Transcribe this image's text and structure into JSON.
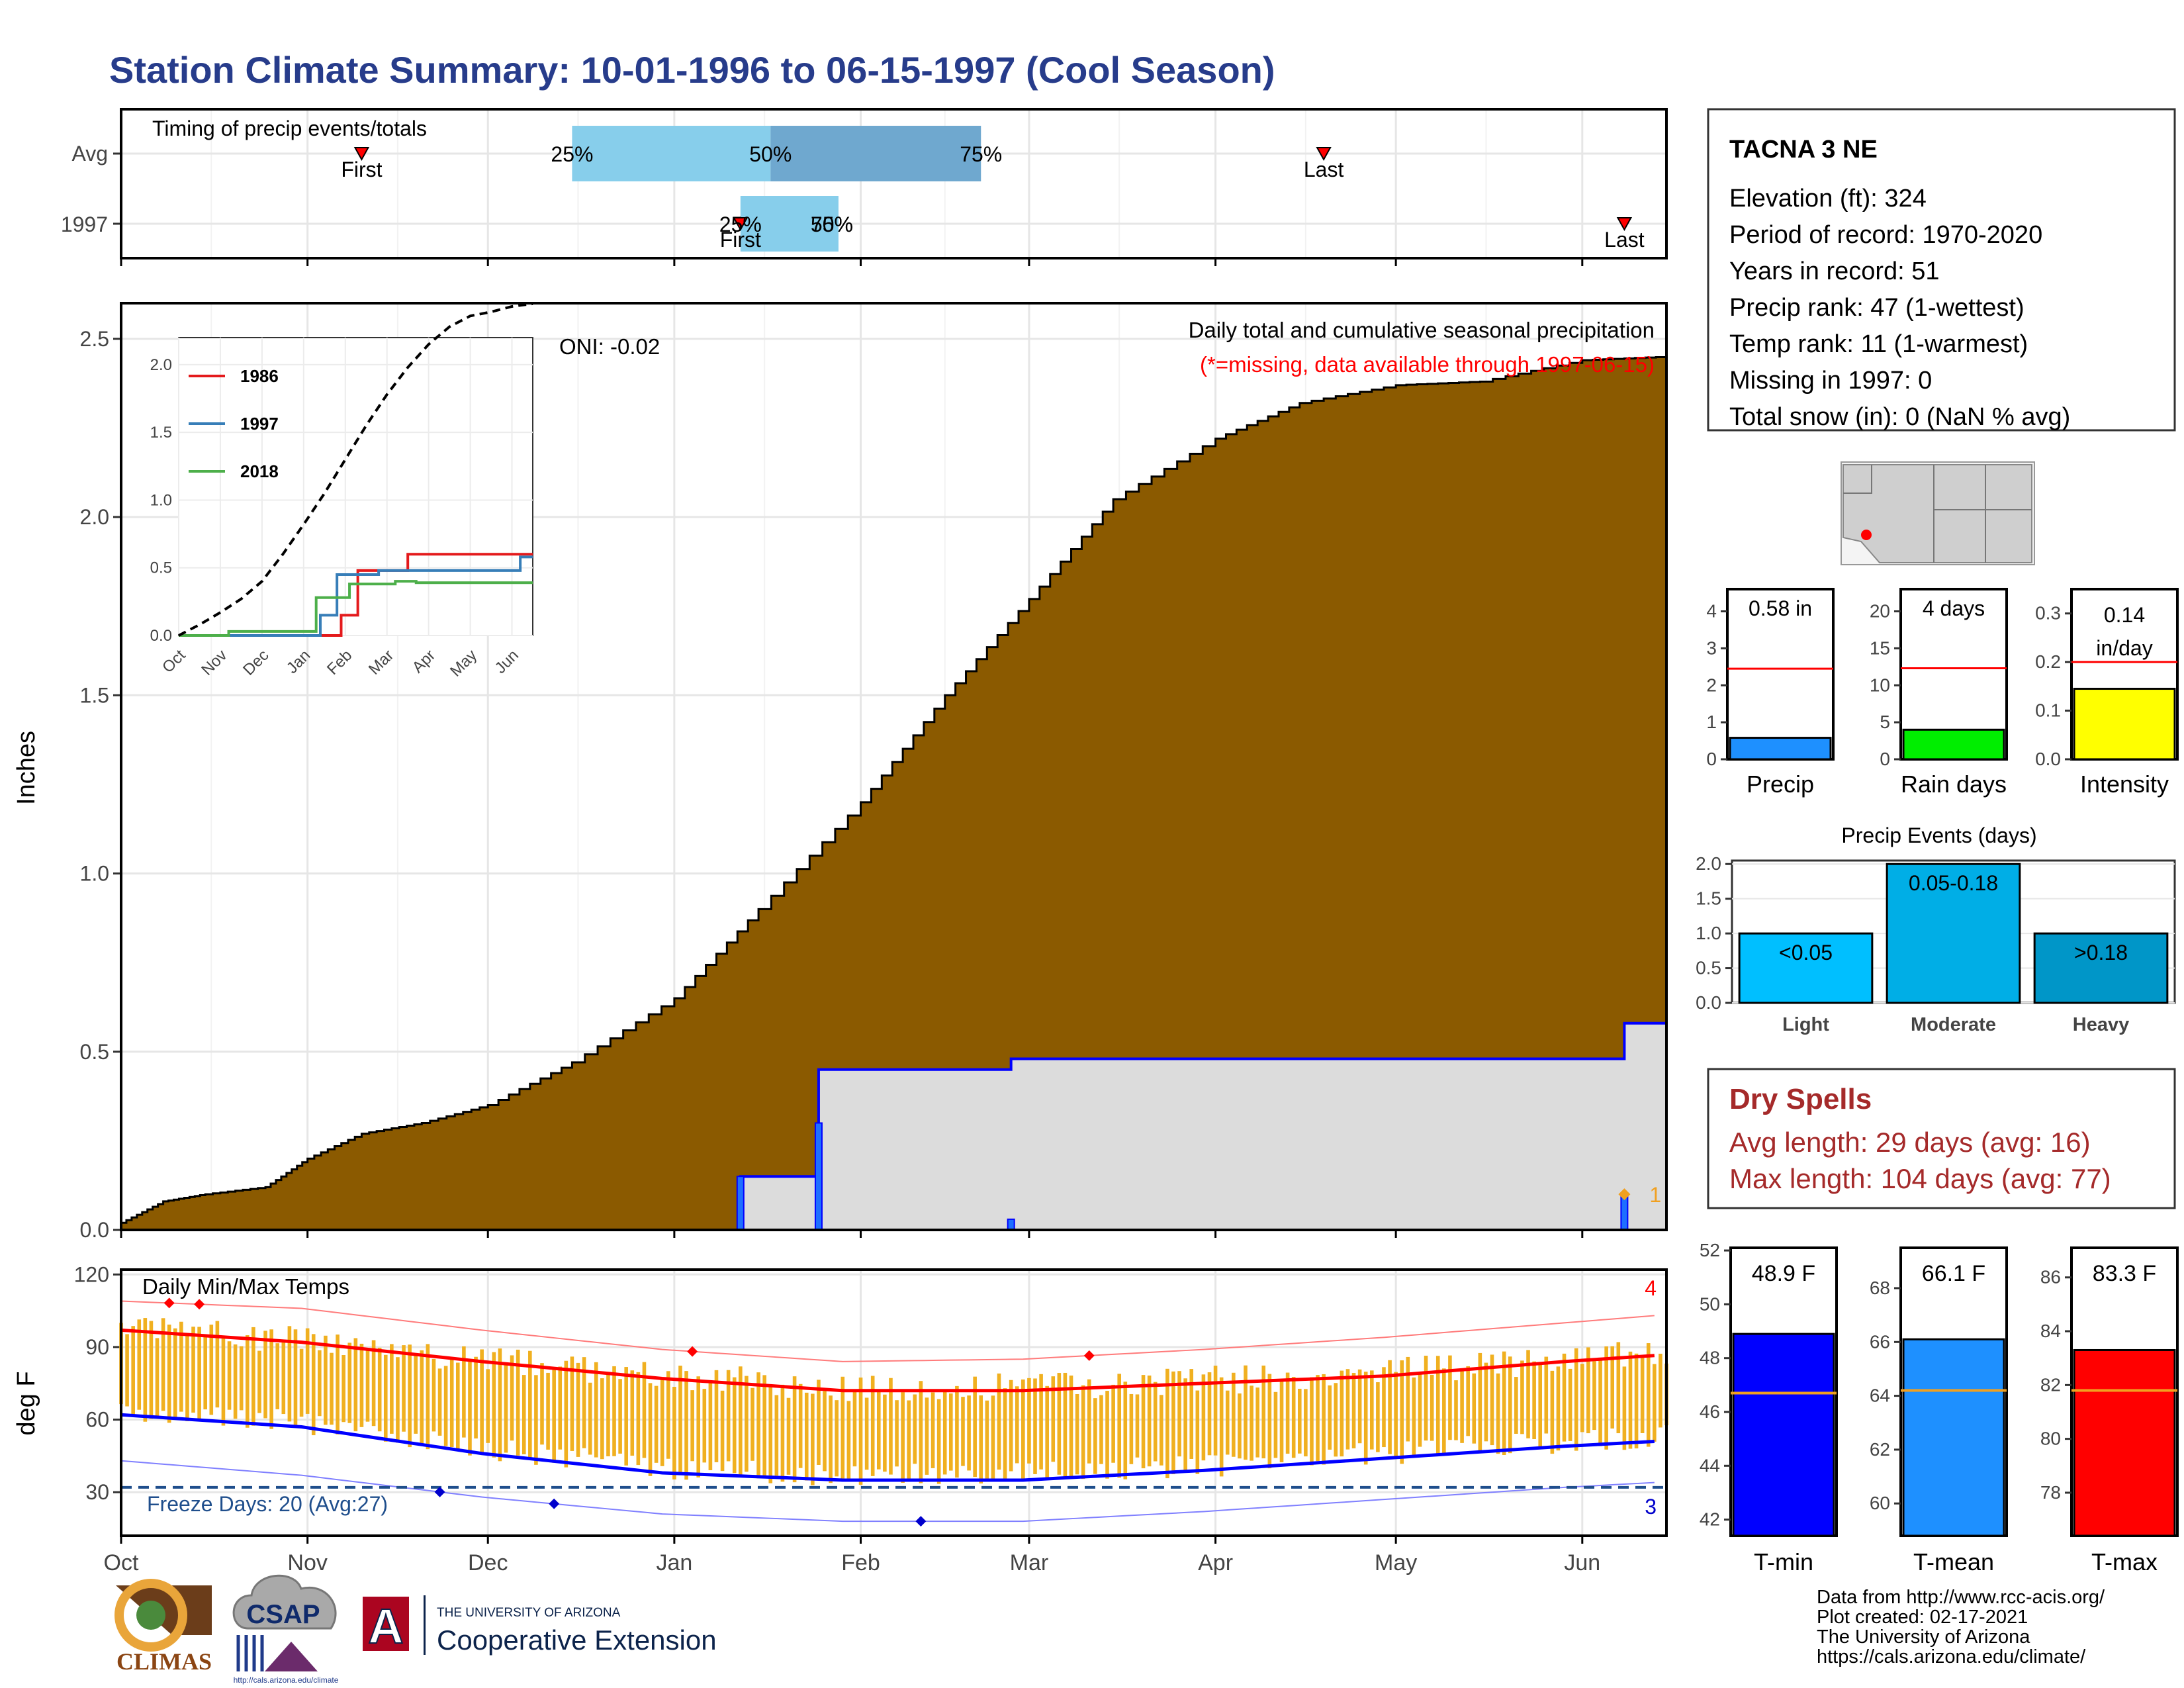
{
  "title": "Station Climate Summary: 10-01-1996 to 06-15-1997 (Cool Season)",
  "chart_data": [
    {
      "id": "timing",
      "type": "bar",
      "title": "Timing of precip events/totals",
      "rows": [
        {
          "label": "Avg",
          "first": "1996-11-10",
          "last": "1997-04-19",
          "q25": "1996-12-15",
          "q50": "1997-01-17",
          "q75": "1997-02-21"
        },
        {
          "label": "1997",
          "first": "1997-01-12",
          "last": "1997-06-08",
          "q25": "1997-01-12",
          "q50": "1997-01-25",
          "q75": "1997-01-25"
        }
      ],
      "labels": {
        "first": "First",
        "last": "Last",
        "p25": "25%",
        "p50": "50%",
        "p75": "75%"
      }
    },
    {
      "id": "precip",
      "type": "area",
      "title": "Daily total and cumulative seasonal precipitation",
      "subtitle": "(*=missing, data available through 1997-06-15)",
      "ylabel": "Inches",
      "oni": "ONI: -0.02",
      "ylim": [
        0,
        2.6
      ],
      "yticks": [
        "0.0",
        "0.5",
        "1.0",
        "1.5",
        "2.0",
        "2.5"
      ],
      "avg_cumulative": [
        {
          "x": "1996-10-01",
          "y": 0.02
        },
        {
          "x": "1996-10-08",
          "y": 0.08
        },
        {
          "x": "1996-10-15",
          "y": 0.1
        },
        {
          "x": "1996-10-25",
          "y": 0.12
        },
        {
          "x": "1996-11-01",
          "y": 0.2
        },
        {
          "x": "1996-11-10",
          "y": 0.27
        },
        {
          "x": "1996-11-20",
          "y": 0.3
        },
        {
          "x": "1996-12-01",
          "y": 0.35
        },
        {
          "x": "1996-12-15",
          "y": 0.47
        },
        {
          "x": "1997-01-01",
          "y": 0.65
        },
        {
          "x": "1997-01-15",
          "y": 0.9
        },
        {
          "x": "1997-02-01",
          "y": 1.2
        },
        {
          "x": "1997-02-15",
          "y": 1.5
        },
        {
          "x": "1997-03-01",
          "y": 1.77
        },
        {
          "x": "1997-03-15",
          "y": 2.05
        },
        {
          "x": "1997-04-01",
          "y": 2.22
        },
        {
          "x": "1997-04-15",
          "y": 2.32
        },
        {
          "x": "1997-05-01",
          "y": 2.37
        },
        {
          "x": "1997-05-15",
          "y": 2.38
        },
        {
          "x": "1997-06-01",
          "y": 2.44
        },
        {
          "x": "1997-06-15",
          "y": 2.45
        }
      ],
      "cumulative_1997": [
        {
          "x": "1996-10-01",
          "y": 0.0
        },
        {
          "x": "1997-01-12",
          "y": 0.15
        },
        {
          "x": "1997-01-25",
          "y": 0.45
        },
        {
          "x": "1997-02-26",
          "y": 0.48
        },
        {
          "x": "1997-06-08",
          "y": 0.58
        }
      ],
      "daily_1997": [
        {
          "x": "1997-01-12",
          "y": 0.15
        },
        {
          "x": "1997-01-25",
          "y": 0.3
        },
        {
          "x": "1997-02-26",
          "y": 0.03
        },
        {
          "x": "1997-06-08",
          "y": 0.1
        }
      ],
      "marker_label": "1",
      "inset": {
        "type": "line",
        "x": [
          "Oct",
          "Nov",
          "Dec",
          "Jan",
          "Feb",
          "Mar",
          "Apr",
          "May",
          "Jun"
        ],
        "yticks": [
          "0.0",
          "0.5",
          "1.0",
          "1.5",
          "2.0"
        ],
        "ylim": [
          0,
          2.2
        ],
        "series": [
          {
            "name": "1986",
            "color": "#e41a1c",
            "points": [
              [
                0,
                0
              ],
              [
                3.9,
                0
              ],
              [
                3.9,
                0.15
              ],
              [
                4.3,
                0.15
              ],
              [
                4.3,
                0.48
              ],
              [
                5.5,
                0.48
              ],
              [
                5.5,
                0.6
              ],
              [
                8.5,
                0.6
              ]
            ]
          },
          {
            "name": "1997",
            "color": "#377eb8",
            "points": [
              [
                0,
                0
              ],
              [
                3.4,
                0
              ],
              [
                3.4,
                0.15
              ],
              [
                3.8,
                0.15
              ],
              [
                3.8,
                0.45
              ],
              [
                4.8,
                0.45
              ],
              [
                4.8,
                0.48
              ],
              [
                8.2,
                0.48
              ],
              [
                8.2,
                0.58
              ],
              [
                8.5,
                0.58
              ]
            ]
          },
          {
            "name": "2018",
            "color": "#4daf4a",
            "points": [
              [
                0,
                0
              ],
              [
                1.2,
                0
              ],
              [
                1.2,
                0.03
              ],
              [
                3.3,
                0.03
              ],
              [
                3.3,
                0.28
              ],
              [
                4.1,
                0.28
              ],
              [
                4.1,
                0.38
              ],
              [
                5.2,
                0.38
              ],
              [
                5.2,
                0.4
              ],
              [
                5.7,
                0.4
              ],
              [
                5.7,
                0.39
              ],
              [
                8.5,
                0.39
              ]
            ]
          },
          {
            "name": "avg",
            "color": "#000000",
            "dash": true,
            "points": [
              [
                0,
                0
              ],
              [
                0.5,
                0.08
              ],
              [
                1,
                0.17
              ],
              [
                1.5,
                0.27
              ],
              [
                2,
                0.4
              ],
              [
                2.5,
                0.6
              ],
              [
                3,
                0.82
              ],
              [
                3.5,
                1.05
              ],
              [
                4,
                1.3
              ],
              [
                4.5,
                1.55
              ],
              [
                5,
                1.78
              ],
              [
                5.5,
                1.98
              ],
              [
                6,
                2.15
              ],
              [
                6.5,
                2.28
              ],
              [
                7,
                2.36
              ],
              [
                7.5,
                2.39
              ],
              [
                8,
                2.43
              ],
              [
                8.5,
                2.45
              ]
            ]
          }
        ]
      }
    },
    {
      "id": "temps",
      "type": "line",
      "title": "Daily Min/Max Temps",
      "ylabel": "deg F",
      "ylim": [
        12,
        122
      ],
      "yticks": [
        "30",
        "60",
        "90",
        "120"
      ],
      "freeze_line": 32,
      "freeze_text": "Freeze Days: 20 (Avg:27)",
      "record_high_count": "4",
      "record_low_count": "3",
      "avg_max": [
        [
          0,
          97
        ],
        [
          30,
          92
        ],
        [
          60,
          84
        ],
        [
          90,
          77
        ],
        [
          120,
          72
        ],
        [
          150,
          72
        ],
        [
          180,
          75
        ],
        [
          210,
          78
        ],
        [
          240,
          84
        ],
        [
          270,
          89
        ],
        [
          300,
          96
        ],
        [
          330,
          100
        ],
        [
          350,
          103
        ]
      ],
      "avg_min": [
        [
          0,
          62
        ],
        [
          30,
          57
        ],
        [
          60,
          46
        ],
        [
          90,
          38
        ],
        [
          120,
          35
        ],
        [
          150,
          35
        ],
        [
          180,
          39
        ],
        [
          210,
          44
        ],
        [
          240,
          49
        ],
        [
          270,
          53
        ],
        [
          300,
          58
        ],
        [
          330,
          62
        ],
        [
          350,
          65
        ]
      ],
      "rec_max": [
        [
          0,
          109
        ],
        [
          30,
          106
        ],
        [
          60,
          97
        ],
        [
          90,
          89
        ],
        [
          120,
          84
        ],
        [
          150,
          85
        ],
        [
          180,
          89
        ],
        [
          210,
          94
        ],
        [
          240,
          100
        ],
        [
          270,
          106
        ],
        [
          300,
          112
        ],
        [
          330,
          117
        ],
        [
          350,
          120
        ]
      ],
      "rec_min": [
        [
          0,
          43
        ],
        [
          30,
          37
        ],
        [
          60,
          28
        ],
        [
          90,
          21
        ],
        [
          120,
          18
        ],
        [
          150,
          18
        ],
        [
          180,
          22
        ],
        [
          210,
          27
        ],
        [
          240,
          32
        ],
        [
          270,
          36
        ],
        [
          300,
          42
        ],
        [
          330,
          48
        ],
        [
          350,
          53
        ]
      ],
      "record_high_days": [
        8,
        13,
        95,
        161
      ],
      "record_low_days": [
        53,
        72,
        133
      ],
      "xticks": [
        "Oct",
        "Nov",
        "Dec",
        "Jan",
        "Feb",
        "Mar",
        "Apr",
        "May",
        "Jun"
      ]
    },
    {
      "id": "season_stats",
      "type": "bar",
      "panels": [
        {
          "label": "Precip",
          "value_text": "0.58 in",
          "value": 0.58,
          "avg": 2.45,
          "ymax": 4.6,
          "yticks": [
            "0",
            "1",
            "2",
            "3",
            "4"
          ],
          "color": "#1e90ff"
        },
        {
          "label": "Rain days",
          "value_text": "4 days",
          "value": 4,
          "avg": 12.3,
          "ymax": 23,
          "yticks": [
            "0",
            "5",
            "10",
            "15",
            "20"
          ],
          "color": "#00ee00"
        },
        {
          "label": "Intensity",
          "value_text": "0.14 in/day",
          "value": 0.145,
          "avg": 0.2,
          "ymax": 0.35,
          "yticks": [
            "0.0",
            "0.1",
            "0.2",
            "0.3"
          ],
          "color": "#ffff00"
        }
      ]
    },
    {
      "id": "events",
      "type": "bar",
      "title": "Precip Events (days)",
      "categories": [
        "Light",
        "Moderate",
        "Heavy"
      ],
      "values": [
        1,
        2,
        1
      ],
      "bar_labels": [
        "<0.05",
        "0.05-0.18",
        ">0.18"
      ],
      "colors": [
        "#00bfff",
        "#00aee6",
        "#0096c8"
      ],
      "ylim": [
        0,
        2.05
      ],
      "yticks": [
        "0.0",
        "0.5",
        "1.0",
        "1.5",
        "2.0"
      ]
    },
    {
      "id": "temp_stats",
      "type": "bar",
      "panels": [
        {
          "label": "T-min",
          "value_text": "48.9 F",
          "value": 48.9,
          "avg": 46.7,
          "ymin": 41.4,
          "ymax": 52.1,
          "yticks": [
            "42",
            "44",
            "46",
            "48",
            "50",
            "52"
          ],
          "color": "#0000ff"
        },
        {
          "label": "T-mean",
          "value_text": "66.1 F",
          "value": 66.1,
          "avg": 64.2,
          "ymin": 58.8,
          "ymax": 69.5,
          "yticks": [
            "60",
            "62",
            "64",
            "66",
            "68"
          ],
          "color": "#1e90ff"
        },
        {
          "label": "T-max",
          "value_text": "83.3 F",
          "value": 83.3,
          "avg": 81.8,
          "ymin": 76.4,
          "ymax": 87.1,
          "yticks": [
            "78",
            "80",
            "82",
            "84",
            "86"
          ],
          "color": "#ff0000"
        }
      ]
    }
  ],
  "station": {
    "name": "TACNA 3 NE",
    "lines": [
      "Elevation (ft): 324",
      "Period of record: 1970-2020",
      "Years in record: 51",
      "Precip rank: 47 (1-wettest)",
      "Temp rank: 11 (1-warmest)",
      "Missing in 1997: 0",
      "Total snow (in): 0 (NaN % avg)"
    ]
  },
  "dry_spells": {
    "title": "Dry Spells",
    "avg_line": "Avg length: 29 days (avg: 16)",
    "max_line": "Max length: 104 days (avg: 77)"
  },
  "footer": {
    "lines": [
      "Data from http://www.rcc-acis.org/",
      "Plot created: 02-17-2021",
      "The University of Arizona",
      "https://cals.arizona.edu/climate/"
    ],
    "logos": {
      "climas": "CLIMAS",
      "csap": "CSAP",
      "csap_url": "http://cals.arizona.edu/climate",
      "ua_small": "THE UNIVERSITY OF ARIZONA",
      "ua_big": "Cooperative Extension",
      "ua_letter": "A"
    }
  },
  "colors": {
    "title": "#273c8b",
    "avg_fill": "#8b5a00",
    "cur_fill": "#dcdcdc",
    "cur_line": "#0000ff",
    "temp_bar": "#f0b020",
    "dry_spell": "#a52a2a",
    "missing_text": "#ff0000"
  }
}
